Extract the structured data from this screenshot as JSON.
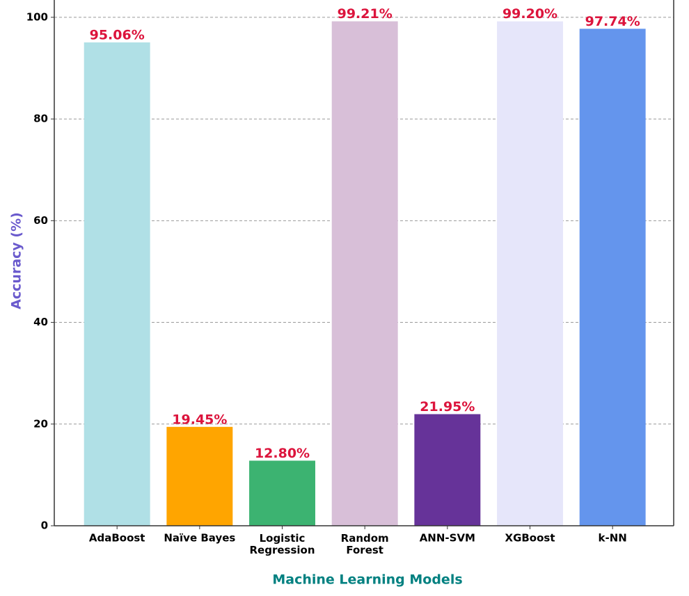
{
  "chart_data": {
    "type": "bar",
    "x_label": "Machine Learning Models",
    "y_label": "Accuracy (%)",
    "categories": [
      "AdaBoost",
      "Naïve Bayes",
      "Logistic\nRegression",
      "Random\nForest",
      "ANN-SVM",
      "XGBoost",
      "k-NN"
    ],
    "values": [
      95.06,
      19.45,
      12.8,
      99.21,
      21.95,
      99.2,
      97.74
    ],
    "value_labels": [
      "95.06%",
      "19.45%",
      "12.80%",
      "99.21%",
      "21.95%",
      "99.20%",
      "97.74%"
    ],
    "colors": [
      "#b0e0e6",
      "#ffa500",
      "#3cb371",
      "#d8bfd8",
      "#663399",
      "#e6e6fa",
      "#6495ed"
    ],
    "ylim": [
      0,
      103.4
    ],
    "yticks": [
      0,
      20,
      40,
      60,
      80,
      100
    ],
    "grid": true
  }
}
